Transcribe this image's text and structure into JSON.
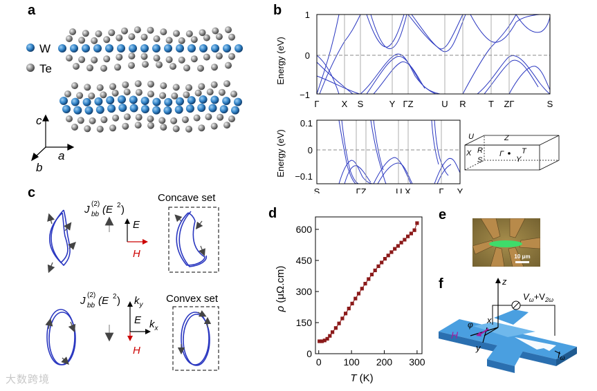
{
  "panels": {
    "a": {
      "label": "a",
      "legend": [
        {
          "symbol": "W",
          "color": "#2f80c4"
        },
        {
          "symbol": "Te",
          "color": "#8c8c8c"
        }
      ],
      "axes": {
        "c": "c",
        "a": "a",
        "b": "b"
      }
    },
    "b": {
      "label": "b",
      "top": {
        "ylabel": "Energy (eV)",
        "yticks": [
          "1",
          "0",
          "−1"
        ],
        "xticks": [
          "Γ",
          "X",
          "S",
          "Y",
          "ΓZ",
          "U",
          "R",
          "T",
          "ZΓ",
          "S"
        ]
      },
      "bottom": {
        "ylabel": "Energy (eV)",
        "yticks": [
          "0.1",
          "0",
          "−0.1"
        ],
        "xticks": [
          "S",
          "ΓZ",
          "U X",
          "Γ",
          "Y"
        ]
      },
      "bz_labels": [
        "U",
        "Z",
        "X",
        "R",
        "Γ",
        "T",
        "S",
        "Y"
      ]
    },
    "c": {
      "label": "c",
      "concave": {
        "title": "Concave set",
        "formula_j": "J",
        "formula_sub": "bb",
        "formula_sup": "(2)",
        "formula_arg": "(E",
        "formula_arg_sup": "2",
        "formula_end": ")",
        "axis_up": "E",
        "axis_right": "H"
      },
      "convex": {
        "title": "Convex set",
        "formula_j": "J",
        "formula_sub": "bb",
        "formula_sup": "(2)",
        "formula_arg": "(E",
        "formula_arg_sup": "2",
        "formula_end": ")",
        "axis_up_k": "k",
        "axis_up_k_sub": "y",
        "axis_mid": "E",
        "axis_right_k": "k",
        "axis_right_k_sub": "x",
        "axis_down": "H"
      }
    },
    "d": {
      "label": "d",
      "chart_data": {
        "type": "scatter",
        "xlabel": "T (K)",
        "ylabel": "ρ (μΩ.cm)",
        "xlim": [
          -10,
          315
        ],
        "ylim": [
          0,
          660
        ],
        "xticks": [
          0,
          100,
          200,
          300
        ],
        "yticks": [
          0,
          150,
          300,
          450,
          600
        ],
        "color": "#8b1a1a",
        "x": [
          2,
          10,
          18,
          26,
          34,
          42,
          52,
          62,
          72,
          82,
          92,
          102,
          112,
          122,
          132,
          142,
          152,
          162,
          172,
          182,
          192,
          202,
          212,
          222,
          232,
          242,
          252,
          262,
          272,
          282,
          292,
          300
        ],
        "y": [
          60,
          60,
          64,
          72,
          86,
          104,
          124,
          146,
          170,
          194,
          218,
          242,
          266,
          290,
          314,
          338,
          360,
          382,
          402,
          422,
          440,
          458,
          474,
          490,
          506,
          520,
          536,
          550,
          566,
          580,
          596,
          630
        ]
      }
    },
    "e": {
      "label": "e",
      "scalebar": "10 μm"
    },
    "f": {
      "label": "f",
      "z": "z",
      "x": "x",
      "y": "y",
      "phi": "φ",
      "H": "H",
      "V_main": "V",
      "V_sub1": "ω",
      "V_plus": "+V",
      "V_sub2": "2ω",
      "I_main": "I",
      "I_sub": "ω"
    }
  },
  "watermark": "大数跨境"
}
